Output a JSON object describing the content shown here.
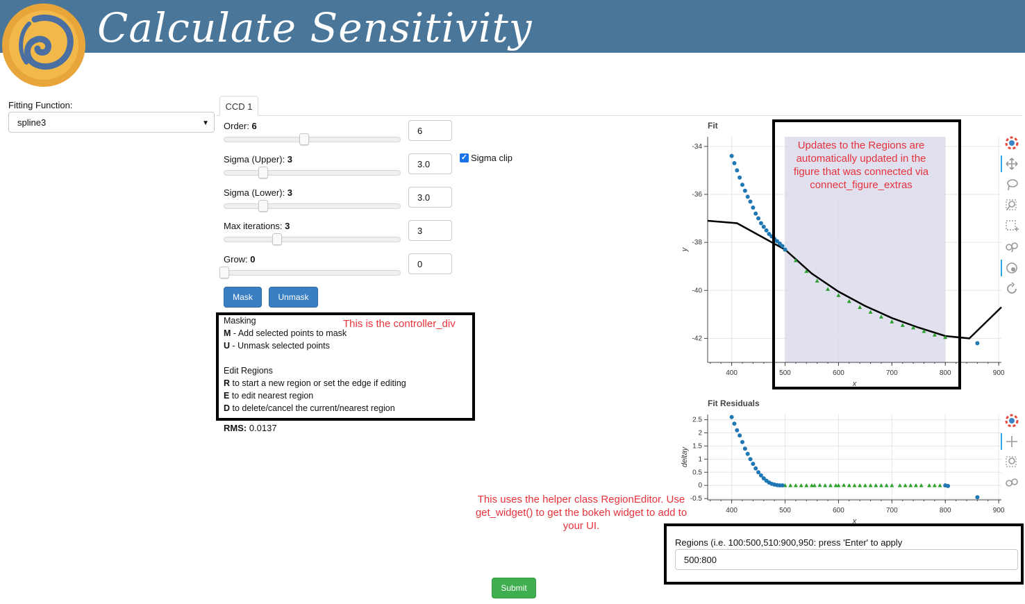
{
  "header": {
    "title": "Calculate Sensitivity"
  },
  "fitting": {
    "label": "Fitting Function:",
    "selected": "spline3"
  },
  "tabs": [
    {
      "label": "CCD 1"
    }
  ],
  "params": [
    {
      "label": "Order:",
      "value": "6",
      "input": "6",
      "fraction": 0.46
    },
    {
      "label": "Sigma (Upper):",
      "value": "3",
      "input": "3.0",
      "fraction": 0.22
    },
    {
      "label": "Sigma (Lower):",
      "value": "3",
      "input": "3.0",
      "fraction": 0.22
    },
    {
      "label": "Max iterations:",
      "value": "3",
      "input": "3",
      "fraction": 0.3
    },
    {
      "label": "Grow:",
      "value": "0",
      "input": "0",
      "fraction": 0.0
    }
  ],
  "sigma_clip": {
    "label": "Sigma clip",
    "checked": true
  },
  "buttons": {
    "mask": "Mask",
    "unmask": "Unmask",
    "submit": "Submit"
  },
  "controller": {
    "masking_title": "Masking",
    "m_key": "M",
    "m_text": " - Add selected points to mask",
    "u_key": "U",
    "u_text": " - Unmask selected points",
    "edit_title": "Edit Regions",
    "r_key": "R",
    "r_text": " to start a new region or set the edge if editing",
    "e_key": "E",
    "e_text": " to edit nearest region",
    "d_key": "D",
    "d_text": " to delete/cancel the current/nearest region"
  },
  "rms": {
    "label": "RMS:",
    "value": "0.0137"
  },
  "notes": {
    "controller": "This is the controller_div",
    "regions_1": "Updates to the Regions are",
    "regions_2": "automatically updated in the",
    "regions_3": "figure that was connected via",
    "regions_4": "connect_figure_extras",
    "helper_1": "This uses the helper class RegionEditor.  Use",
    "helper_2": "get_widget() to get the bokeh widget to add to",
    "helper_3": "your UI."
  },
  "regions": {
    "label": "Regions (i.e. 100:500,510:900,950: press 'Enter' to apply",
    "value": "500:800"
  },
  "colors": {
    "header": "#4a7699",
    "points": "#1f77b4",
    "masked": "#2ca02c",
    "region": "#dadbec",
    "note": "#e8323c"
  },
  "toolbar_icons": [
    "bokeh-logo-icon",
    "pan-icon",
    "lasso-select-icon",
    "box-zoom-icon",
    "box-select-icon",
    "wheel-zoom-icon",
    "tap-icon",
    "reset-icon"
  ],
  "chart_data": [
    {
      "type": "scatter",
      "title": "Fit",
      "xlabel": "x",
      "ylabel": "y",
      "xlim": [
        355,
        905
      ],
      "ylim": [
        -43.0,
        -33.6
      ],
      "xticks": [
        400,
        500,
        600,
        700,
        800,
        900
      ],
      "yticks": [
        -34,
        -36,
        -38,
        -40,
        -42
      ],
      "region": [
        500,
        800
      ],
      "series": [
        {
          "name": "",
          "values_x": [
            400,
            405,
            410,
            415,
            420,
            425,
            430,
            435,
            440,
            445,
            450,
            455,
            460,
            465,
            470,
            475,
            480,
            485,
            490,
            495,
            500,
            860
          ],
          "values_y": [
            -34.4,
            -34.7,
            -35.0,
            -35.3,
            -35.6,
            -35.85,
            -36.1,
            -36.3,
            -36.55,
            -36.8,
            -37.0,
            -37.2,
            -37.35,
            -37.5,
            -37.65,
            -37.75,
            -37.85,
            -37.95,
            -38.05,
            -38.15,
            -38.3,
            -42.2
          ]
        },
        {
          "name": "",
          "values_x": [
            500,
            520,
            540,
            560,
            580,
            600,
            620,
            640,
            660,
            680,
            700,
            720,
            740,
            760,
            780,
            800
          ],
          "values_y": [
            -38.3,
            -38.75,
            -39.2,
            -39.6,
            -39.95,
            -40.2,
            -40.45,
            -40.7,
            -40.9,
            -41.1,
            -41.3,
            -41.45,
            -41.55,
            -41.7,
            -41.85,
            -41.95
          ]
        }
      ],
      "fit_line": {
        "x": [
          355,
          410,
          500,
          550,
          600,
          650,
          700,
          750,
          800,
          845,
          905
        ],
        "y": [
          -37.1,
          -37.2,
          -38.3,
          -39.3,
          -40.05,
          -40.65,
          -41.15,
          -41.55,
          -41.9,
          -42.0,
          -40.7
        ]
      }
    },
    {
      "type": "scatter",
      "title": "Fit Residuals",
      "xlabel": "x",
      "ylabel": "deltay",
      "xlim": [
        355,
        905
      ],
      "ylim": [
        -0.55,
        2.7
      ],
      "xticks": [
        400,
        500,
        600,
        700,
        800,
        900
      ],
      "yticks": [
        "2.5",
        "2",
        "1.5",
        "1",
        "0.5",
        "0",
        "-0.5"
      ],
      "yticks_values": [
        2.5,
        2,
        1.5,
        1,
        0.5,
        0,
        -0.5
      ],
      "series": [
        {
          "name": "",
          "values_x": [
            400,
            405,
            410,
            415,
            420,
            425,
            430,
            435,
            440,
            445,
            450,
            455,
            460,
            465,
            470,
            475,
            480,
            485,
            490,
            495,
            800,
            805,
            860
          ],
          "values_y": [
            2.6,
            2.35,
            2.1,
            1.9,
            1.65,
            1.4,
            1.2,
            1.0,
            0.82,
            0.65,
            0.5,
            0.38,
            0.27,
            0.18,
            0.11,
            0.06,
            0.03,
            0.01,
            0.0,
            0.0,
            0.0,
            -0.02,
            -0.45
          ]
        },
        {
          "name": "",
          "values_x": [
            500,
            510,
            520,
            530,
            540,
            550,
            555,
            565,
            575,
            585,
            595,
            600,
            610,
            620,
            630,
            640,
            650,
            660,
            670,
            680,
            690,
            700,
            715,
            725,
            735,
            745,
            755,
            770,
            780,
            790,
            800
          ],
          "values_y": [
            0,
            0,
            0,
            0,
            0,
            0,
            0,
            0.01,
            0,
            0,
            0,
            0,
            0.01,
            0,
            0,
            0,
            0,
            0,
            0,
            0,
            0,
            0,
            0,
            0,
            0,
            0,
            0,
            0,
            0,
            0,
            0
          ]
        }
      ]
    }
  ]
}
